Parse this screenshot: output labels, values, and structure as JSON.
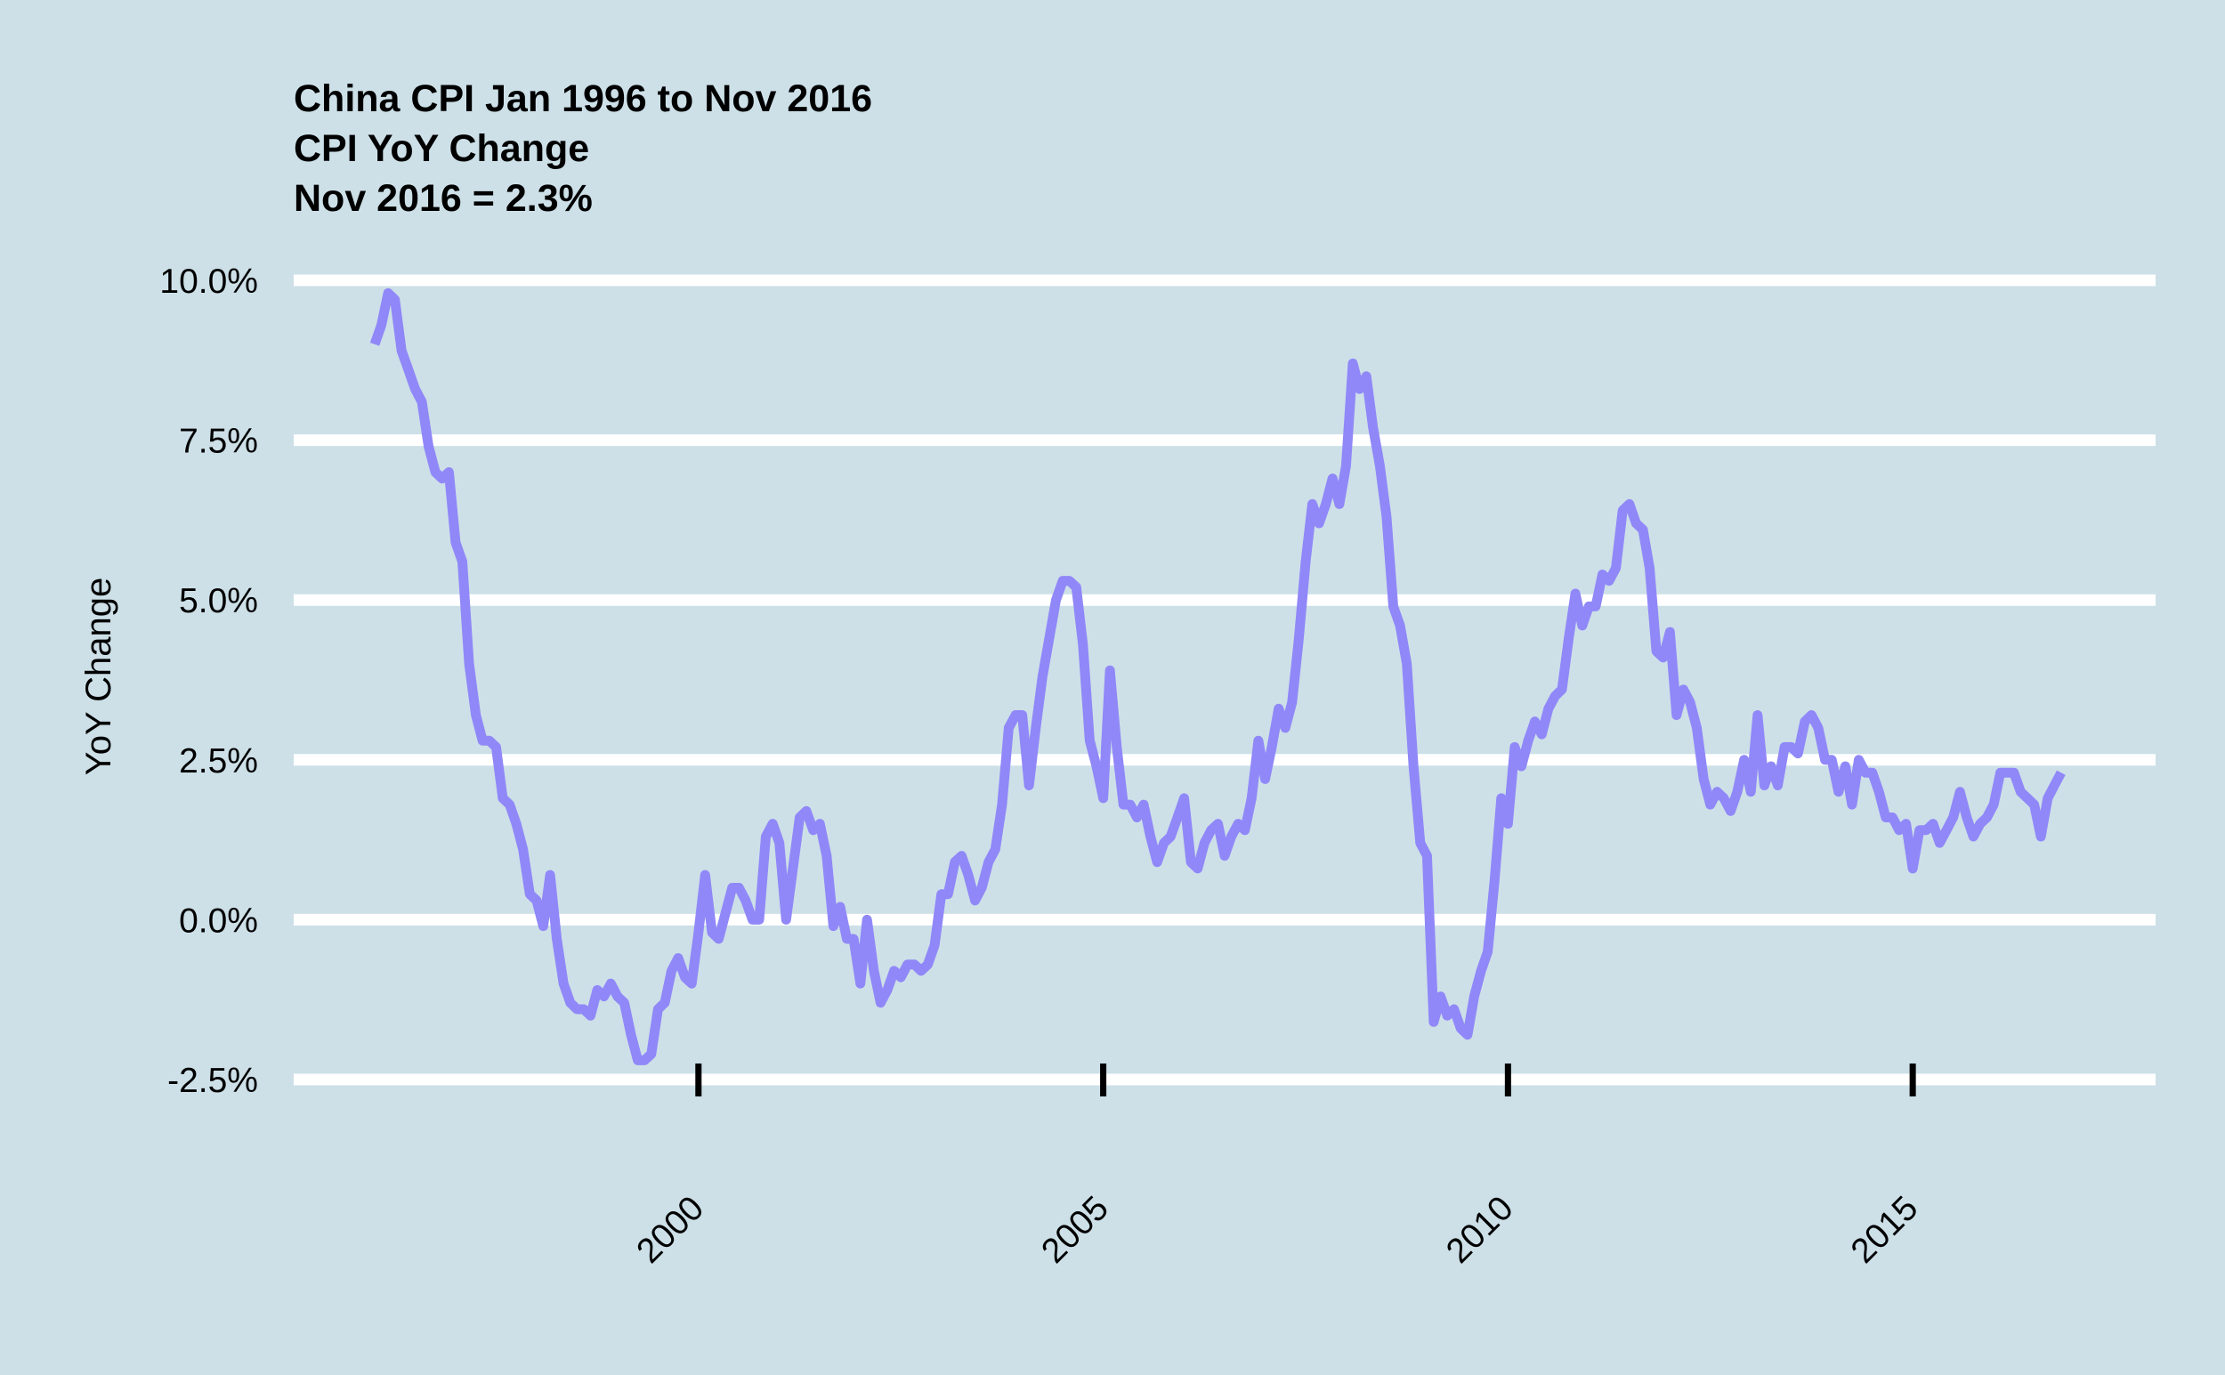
{
  "chart_data": {
    "type": "line",
    "title_lines": [
      "China CPI Jan 1996 to Nov 2016",
      "CPI YoY Change",
      "Nov 2016 = 2.3%"
    ],
    "xlabel": "",
    "ylabel": "YoY Change",
    "xlim": [
      1995.0,
      2018.0
    ],
    "ylim": [
      -2.5,
      10.0
    ],
    "y_ticks": [
      {
        "value": 10.0,
        "label": "10.0%"
      },
      {
        "value": 7.5,
        "label": "7.5%"
      },
      {
        "value": 5.0,
        "label": "5.0%"
      },
      {
        "value": 2.5,
        "label": "2.5%"
      },
      {
        "value": 0.0,
        "label": "0.0%"
      },
      {
        "value": -2.5,
        "label": "-2.5%"
      }
    ],
    "x_ticks": [
      {
        "value": 2000,
        "label": "2000"
      },
      {
        "value": 2005,
        "label": "2005"
      },
      {
        "value": 2010,
        "label": "2010"
      },
      {
        "value": 2015,
        "label": "2015"
      }
    ],
    "grid": "horizontal",
    "legend": "none",
    "colors": {
      "background": "#cde0e8",
      "line": "#9088f8",
      "grid": "#ffffff",
      "ticks": "#000000"
    },
    "series": [
      {
        "x": [
          1996.0,
          1996.083,
          1996.167,
          1996.25,
          1996.333,
          1996.417,
          1996.5,
          1996.583,
          1996.667,
          1996.75,
          1996.833,
          1996.917,
          1997.0,
          1997.083,
          1997.167,
          1997.25,
          1997.333,
          1997.417,
          1997.5,
          1997.583,
          1997.667,
          1997.75,
          1997.833,
          1997.917,
          1998.0,
          1998.083,
          1998.167,
          1998.25,
          1998.333,
          1998.417,
          1998.5,
          1998.583,
          1998.667,
          1998.75,
          1998.833,
          1998.917,
          1999.0,
          1999.083,
          1999.167,
          1999.25,
          1999.333,
          1999.417,
          1999.5,
          1999.583,
          1999.667,
          1999.75,
          1999.833,
          1999.917,
          2000.0,
          2000.083,
          2000.167,
          2000.25,
          2000.333,
          2000.417,
          2000.5,
          2000.583,
          2000.667,
          2000.75,
          2000.833,
          2000.917,
          2001.0,
          2001.083,
          2001.167,
          2001.25,
          2001.333,
          2001.417,
          2001.5,
          2001.583,
          2001.667,
          2001.75,
          2001.833,
          2001.917,
          2002.0,
          2002.083,
          2002.167,
          2002.25,
          2002.333,
          2002.417,
          2002.5,
          2002.583,
          2002.667,
          2002.75,
          2002.833,
          2002.917,
          2003.0,
          2003.083,
          2003.167,
          2003.25,
          2003.333,
          2003.417,
          2003.5,
          2003.583,
          2003.667,
          2003.75,
          2003.833,
          2003.917,
          2004.0,
          2004.083,
          2004.167,
          2004.25,
          2004.333,
          2004.417,
          2004.5,
          2004.583,
          2004.667,
          2004.75,
          2004.833,
          2004.917,
          2005.0,
          2005.083,
          2005.167,
          2005.25,
          2005.333,
          2005.417,
          2005.5,
          2005.583,
          2005.667,
          2005.75,
          2005.833,
          2005.917,
          2006.0,
          2006.083,
          2006.167,
          2006.25,
          2006.333,
          2006.417,
          2006.5,
          2006.583,
          2006.667,
          2006.75,
          2006.833,
          2006.917,
          2007.0,
          2007.083,
          2007.167,
          2007.25,
          2007.333,
          2007.417,
          2007.5,
          2007.583,
          2007.667,
          2007.75,
          2007.833,
          2007.917,
          2008.0,
          2008.083,
          2008.167,
          2008.25,
          2008.333,
          2008.417,
          2008.5,
          2008.583,
          2008.667,
          2008.75,
          2008.833,
          2008.917,
          2009.0,
          2009.083,
          2009.167,
          2009.25,
          2009.333,
          2009.417,
          2009.5,
          2009.583,
          2009.667,
          2009.75,
          2009.833,
          2009.917,
          2010.0,
          2010.083,
          2010.167,
          2010.25,
          2010.333,
          2010.417,
          2010.5,
          2010.583,
          2010.667,
          2010.75,
          2010.833,
          2010.917,
          2011.0,
          2011.083,
          2011.167,
          2011.25,
          2011.333,
          2011.417,
          2011.5,
          2011.583,
          2011.667,
          2011.75,
          2011.833,
          2011.917,
          2012.0,
          2012.083,
          2012.167,
          2012.25,
          2012.333,
          2012.417,
          2012.5,
          2012.583,
          2012.667,
          2012.75,
          2012.833,
          2012.917,
          2013.0,
          2013.083,
          2013.167,
          2013.25,
          2013.333,
          2013.417,
          2013.5,
          2013.583,
          2013.667,
          2013.75,
          2013.833,
          2013.917,
          2014.0,
          2014.083,
          2014.167,
          2014.25,
          2014.333,
          2014.417,
          2014.5,
          2014.583,
          2014.667,
          2014.75,
          2014.833,
          2014.917,
          2015.0,
          2015.083,
          2015.167,
          2015.25,
          2015.333,
          2015.417,
          2015.5,
          2015.583,
          2015.667,
          2015.75,
          2015.833,
          2015.917,
          2016.0,
          2016.083,
          2016.167,
          2016.25,
          2016.333,
          2016.417,
          2016.5,
          2016.583,
          2016.667,
          2016.75,
          2016.833
        ],
        "values": [
          9.0,
          9.3,
          9.8,
          9.7,
          8.9,
          8.6,
          8.3,
          8.1,
          7.4,
          7.0,
          6.9,
          7.0,
          5.9,
          5.6,
          4.0,
          3.2,
          2.8,
          2.8,
          2.7,
          1.9,
          1.8,
          1.5,
          1.1,
          0.4,
          0.3,
          -0.1,
          0.7,
          -0.3,
          -1.0,
          -1.3,
          -1.4,
          -1.4,
          -1.5,
          -1.1,
          -1.2,
          -1.0,
          -1.2,
          -1.3,
          -1.8,
          -2.2,
          -2.2,
          -2.1,
          -1.4,
          -1.3,
          -0.8,
          -0.6,
          -0.9,
          -1.0,
          -0.2,
          0.7,
          -0.2,
          -0.3,
          0.1,
          0.5,
          0.5,
          0.3,
          0.0,
          0.0,
          1.3,
          1.5,
          1.2,
          0.0,
          0.8,
          1.6,
          1.7,
          1.4,
          1.5,
          1.0,
          -0.1,
          0.2,
          -0.3,
          -0.3,
          -1.0,
          0.0,
          -0.8,
          -1.3,
          -1.1,
          -0.8,
          -0.9,
          -0.7,
          -0.7,
          -0.8,
          -0.7,
          -0.4,
          0.4,
          0.4,
          0.9,
          1.0,
          0.7,
          0.3,
          0.5,
          0.9,
          1.1,
          1.8,
          3.0,
          3.2,
          3.2,
          2.1,
          3.0,
          3.8,
          4.4,
          5.0,
          5.3,
          5.3,
          5.2,
          4.3,
          2.8,
          2.4,
          1.9,
          3.9,
          2.7,
          1.8,
          1.8,
          1.6,
          1.8,
          1.3,
          0.9,
          1.2,
          1.3,
          1.6,
          1.9,
          0.9,
          0.8,
          1.2,
          1.4,
          1.5,
          1.0,
          1.3,
          1.5,
          1.4,
          1.9,
          2.8,
          2.2,
          2.7,
          3.3,
          3.0,
          3.4,
          4.4,
          5.6,
          6.5,
          6.2,
          6.5,
          6.9,
          6.5,
          7.1,
          8.7,
          8.3,
          8.5,
          7.7,
          7.1,
          6.3,
          4.9,
          4.6,
          4.0,
          2.4,
          1.2,
          1.0,
          -1.6,
          -1.2,
          -1.5,
          -1.4,
          -1.7,
          -1.8,
          -1.2,
          -0.8,
          -0.5,
          0.6,
          1.9,
          1.5,
          2.7,
          2.4,
          2.8,
          3.1,
          2.9,
          3.3,
          3.5,
          3.6,
          4.4,
          5.1,
          4.6,
          4.9,
          4.9,
          5.4,
          5.3,
          5.5,
          6.4,
          6.5,
          6.2,
          6.1,
          5.5,
          4.2,
          4.1,
          4.5,
          3.2,
          3.6,
          3.4,
          3.0,
          2.2,
          1.8,
          2.0,
          1.9,
          1.7,
          2.0,
          2.5,
          2.0,
          3.2,
          2.1,
          2.4,
          2.1,
          2.7,
          2.7,
          2.6,
          3.1,
          3.2,
          3.0,
          2.5,
          2.5,
          2.0,
          2.4,
          1.8,
          2.5,
          2.3,
          2.3,
          2.0,
          1.6,
          1.6,
          1.4,
          1.5,
          0.8,
          1.4,
          1.4,
          1.5,
          1.2,
          1.4,
          1.6,
          2.0,
          1.6,
          1.3,
          1.5,
          1.6,
          1.8,
          2.3,
          2.3,
          2.3,
          2.0,
          1.9,
          1.8,
          1.3,
          1.9,
          2.1,
          2.3
        ]
      }
    ]
  }
}
